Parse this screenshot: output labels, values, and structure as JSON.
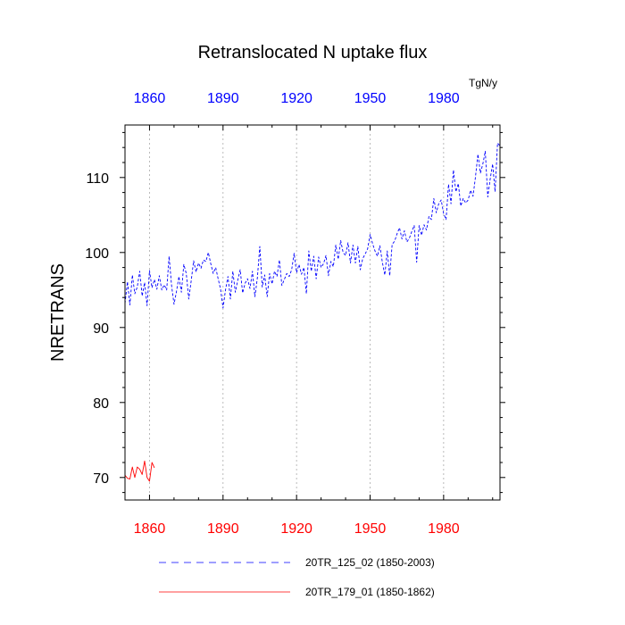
{
  "chart_data": {
    "type": "line",
    "title": "Retranslocated N uptake flux",
    "ylabel": "NRETRANS",
    "units": "TgN/y",
    "xlim": [
      1850,
      2003
    ],
    "ylim": [
      67,
      117
    ],
    "x_ticks": [
      "1860",
      "1890",
      "1920",
      "1950",
      "1980"
    ],
    "x_tick_values": [
      1860,
      1890,
      1920,
      1950,
      1980
    ],
    "y_ticks": [
      "70",
      "80",
      "90",
      "100",
      "110"
    ],
    "y_tick_values": [
      70,
      80,
      90,
      100,
      110
    ],
    "grid": "vertical dotted at major x ticks",
    "series": [
      {
        "name": "20TR_125_02 (1850-2003)",
        "color": "#0000ff",
        "style": "dashed",
        "x_start": 1850,
        "values": [
          93.2,
          96.1,
          93.0,
          97.0,
          94.5,
          95.4,
          97.5,
          94.2,
          96.0,
          92.9,
          97.6,
          95.3,
          96.4,
          95.1,
          96.9,
          95.0,
          95.7,
          95.0,
          99.5,
          95.6,
          93.1,
          94.8,
          96.8,
          94.7,
          98.4,
          97.2,
          93.8,
          96.2,
          98.9,
          97.4,
          98.6,
          97.9,
          99.0,
          98.8,
          100.0,
          98.5,
          97.2,
          98.0,
          96.5,
          95.1,
          92.6,
          95.0,
          96.8,
          93.8,
          97.5,
          94.7,
          96.3,
          97.7,
          94.6,
          95.9,
          96.5,
          95.2,
          97.5,
          94.1,
          96.6,
          100.8,
          95.4,
          97.0,
          94.1,
          97.2,
          95.8,
          97.5,
          96.8,
          99.0,
          95.6,
          96.4,
          97.2,
          96.8,
          97.7,
          99.9,
          97.3,
          98.4,
          97.1,
          98.0,
          94.5,
          100.2,
          97.5,
          99.5,
          96.5,
          99.4,
          98.0,
          98.5,
          99.6,
          96.9,
          98.8,
          98.1,
          101.0,
          99.1,
          101.6,
          100.0,
          99.6,
          101.3,
          98.6,
          101.0,
          98.6,
          100.8,
          97.7,
          99.2,
          99.8,
          100.5,
          102.4,
          101.2,
          100.2,
          99.5,
          100.9,
          98.7,
          97.0,
          100.2,
          96.9,
          101.1,
          101.5,
          102.5,
          103.3,
          101.8,
          102.9,
          101.4,
          101.9,
          102.8,
          103.6,
          98.7,
          103.6,
          102.3,
          103.7,
          103.0,
          104.8,
          104.4,
          107.2,
          105.3,
          106.5,
          107.0,
          105.2,
          104.4,
          109.1,
          106.5,
          111.0,
          108.1,
          109.2,
          106.2,
          107.2,
          106.6,
          107.0,
          108.3,
          107.5,
          110.1,
          113.1,
          110.6,
          111.8,
          113.5,
          107.4,
          109.8,
          111.8,
          108.1,
          114.6,
          114.2
        ]
      },
      {
        "name": "20TR_179_01 (1850-1862)",
        "color": "#ff0000",
        "style": "solid",
        "x_start": 1850,
        "values": [
          70.3,
          69.9,
          69.8,
          71.4,
          70.0,
          71.4,
          71.1,
          70.4,
          72.2,
          70.0,
          69.5,
          72.0,
          71.3
        ]
      }
    ]
  }
}
